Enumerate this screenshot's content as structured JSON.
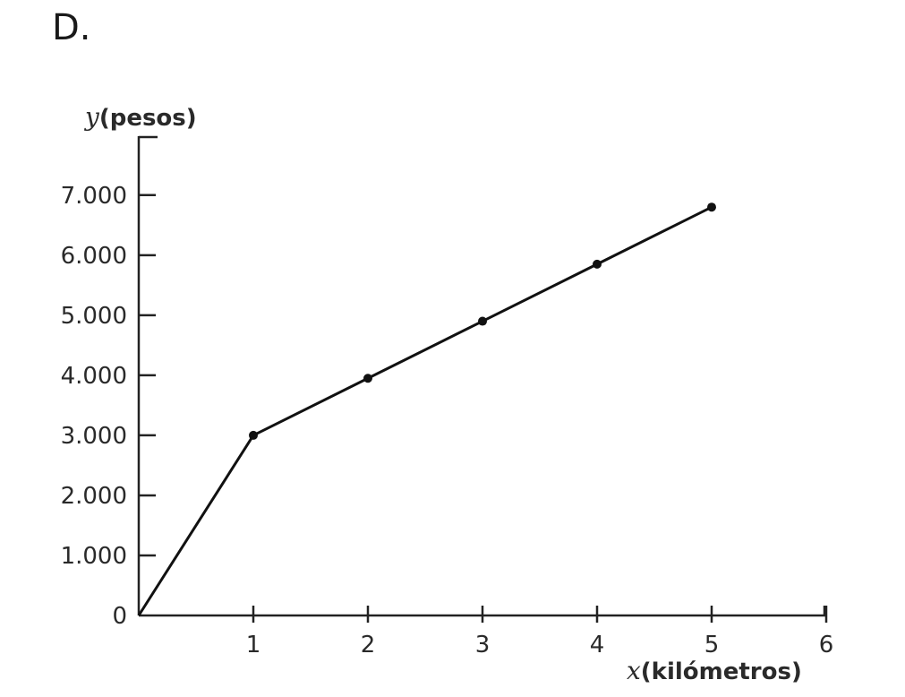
{
  "option_label": "D.",
  "chart_data": {
    "type": "line",
    "x": [
      0,
      1,
      2,
      3,
      4,
      5
    ],
    "series": [
      {
        "values": [
          0,
          3000,
          3950,
          4900,
          5850,
          6800
        ]
      }
    ],
    "x_ticks": [
      1,
      2,
      3,
      4,
      5,
      6
    ],
    "x_tick_labels": [
      "1",
      "2",
      "3",
      "4",
      "5",
      "6"
    ],
    "y_ticks": [
      0,
      1000,
      2000,
      3000,
      4000,
      5000,
      6000,
      7000
    ],
    "y_tick_labels": [
      "0",
      "1.000",
      "2.000",
      "3.000",
      "4.000",
      "5.000",
      "6.000",
      "7.000"
    ],
    "xlabel_var": "x",
    "xlabel_unit": "(kilómetros)",
    "ylabel_var": "y",
    "ylabel_unit": "(pesos)",
    "xlim": [
      0,
      6
    ],
    "ylim": [
      0,
      8000
    ],
    "grid": false,
    "markers": true,
    "color": "#111111"
  }
}
